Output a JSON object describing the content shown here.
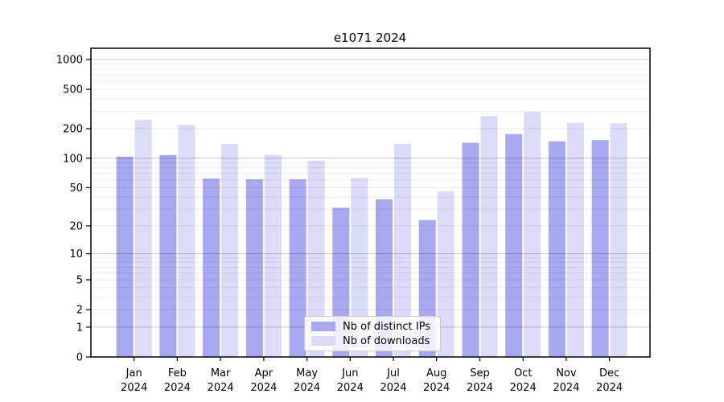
{
  "chart_data": {
    "type": "bar",
    "title": "e1071 2024",
    "categories": [
      "Jan",
      "Feb",
      "Mar",
      "Apr",
      "May",
      "Jun",
      "Jul",
      "Aug",
      "Sep",
      "Oct",
      "Nov",
      "Dec"
    ],
    "category_year": "2024",
    "series": [
      {
        "name": "Nb of distinct IPs",
        "color": "#a8a8f0",
        "values": [
          104,
          108,
          62,
          61,
          61,
          31,
          38,
          23,
          144,
          176,
          149,
          153
        ]
      },
      {
        "name": "Nb of downloads",
        "color": "#dcdcf8",
        "values": [
          246,
          218,
          140,
          108,
          95,
          63,
          140,
          46,
          268,
          297,
          229,
          227
        ]
      }
    ],
    "y_axis": {
      "scale": "log1p",
      "tick_values": [
        0,
        1,
        2,
        5,
        10,
        20,
        50,
        100,
        200,
        500,
        1000
      ],
      "major_grid_values": [
        1,
        10,
        100,
        1000
      ],
      "minor_grid_decades": [
        1,
        10,
        100
      ],
      "ylim": [
        0,
        1000
      ]
    },
    "legend": {
      "position": "lower-center"
    },
    "grid": true,
    "colors": {
      "major_grid": "rgba(0,0,0,0.22)",
      "minor_grid": "rgba(0,0,0,0.08)",
      "spine": "#000000"
    }
  }
}
